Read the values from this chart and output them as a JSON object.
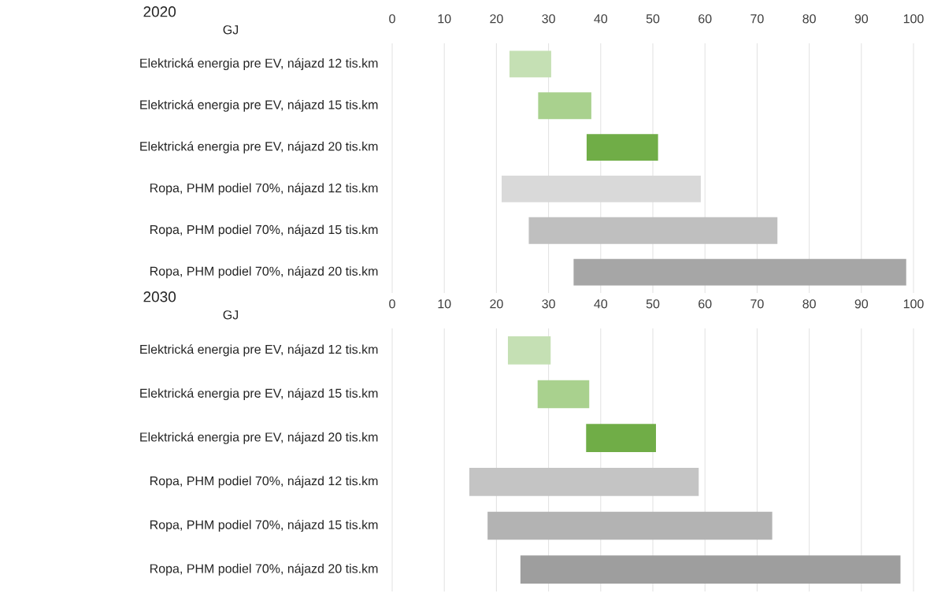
{
  "chart_data": [
    {
      "type": "bar",
      "orientation": "horizontal",
      "title": "2020",
      "xlabel": "GJ",
      "categories": [
        "Elektrická energia pre EV, nájazd 12 tis.km",
        "Elektrická energia pre EV, nájazd 15 tis.km",
        "Elektrická energia pre EV, nájazd 20 tis.km",
        "Ropa, PHM podiel 70%, nájazd 12 tis.km",
        "Ropa, PHM podiel 70%, nájazd 15 tis.km",
        "Ropa, PHM podiel 70%, nájazd 20 tis.km"
      ],
      "base": [
        22.5,
        28,
        37.3,
        21,
        26.2,
        34.8
      ],
      "values": [
        8,
        10.2,
        13.7,
        38.2,
        47.7,
        63.8
      ],
      "colors": [
        "#c5e0b4",
        "#a9d18e",
        "#70ad47",
        "#d9d9d9",
        "#bfbfbf",
        "#a6a6a6"
      ],
      "xlim": [
        0,
        100
      ],
      "xticks": [
        0,
        10,
        20,
        30,
        40,
        50,
        60,
        70,
        80,
        90,
        100
      ],
      "grid": "x"
    },
    {
      "type": "bar",
      "orientation": "horizontal",
      "title": "2030",
      "xlabel": "GJ",
      "categories": [
        "Elektrická energia pre EV, nájazd 12 tis.km",
        "Elektrická energia pre EV, nájazd 15 tis.km",
        "Elektrická energia pre EV, nájazd 20 tis.km",
        "Ropa, PHM podiel 70%, nájazd 12 tis.km",
        "Ropa, PHM podiel 70%, nájazd 15 tis.km",
        "Ropa, PHM podiel 70%, nájazd 20 tis.km"
      ],
      "base": [
        22.2,
        27.9,
        37.2,
        14.8,
        18.3,
        24.6
      ],
      "values": [
        8.2,
        9.9,
        13.4,
        44,
        54.6,
        72.9
      ],
      "colors": [
        "#c5e0b4",
        "#a9d18e",
        "#70ad47",
        "#c4c4c4",
        "#b3b3b3",
        "#9e9e9e"
      ],
      "xlim": [
        0,
        100
      ],
      "xticks": [
        0,
        10,
        20,
        30,
        40,
        50,
        60,
        70,
        80,
        90,
        100
      ],
      "grid": "x"
    }
  ]
}
